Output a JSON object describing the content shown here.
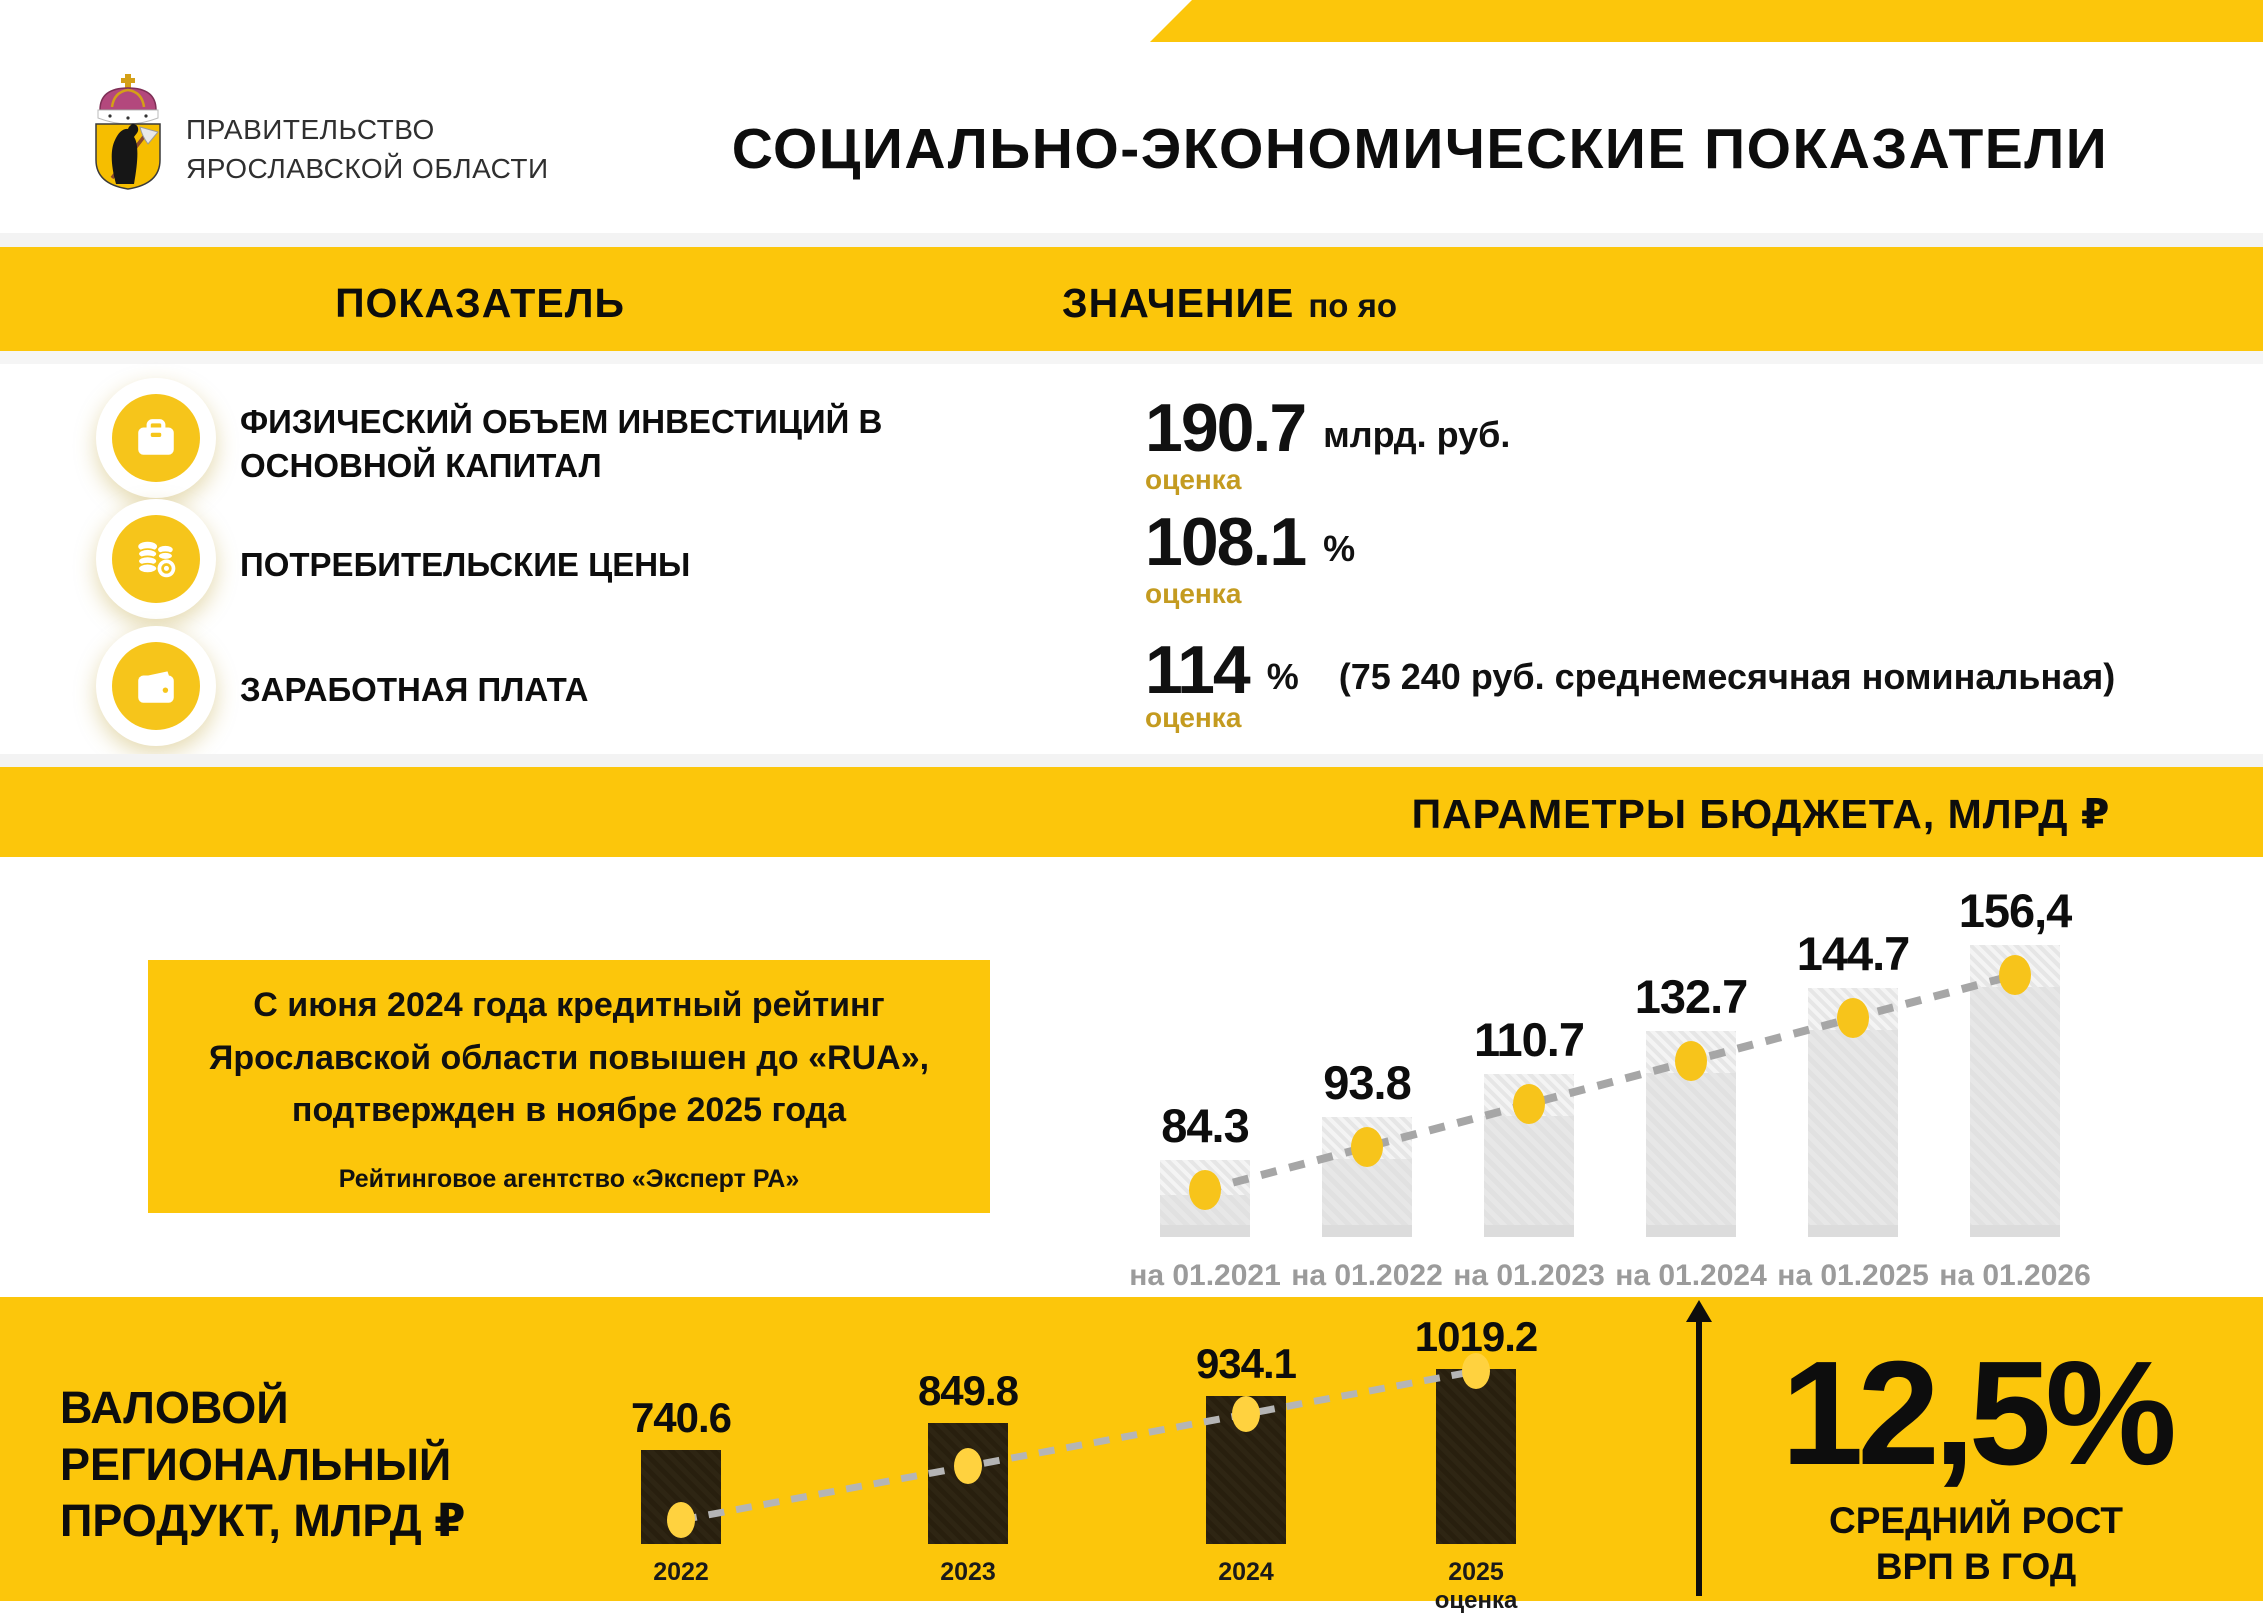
{
  "header": {
    "org_line1": "ПРАВИТЕЛЬСТВО",
    "org_line2": "ЯРОСЛАВСКОЙ ОБЛАСТИ",
    "title": "СОЦИАЛЬНО-ЭКОНОМИЧЕСКИЕ ПОКАЗАТЕЛИ"
  },
  "table_band": {
    "col_indicator": "ПОКАЗАТЕЛЬ",
    "col_value": "ЗНАЧЕНИЕ",
    "col_value_suffix": "по яо"
  },
  "indicators": [
    {
      "icon": "briefcase-icon",
      "label_line1": "ФИЗИЧЕСКИЙ ОБЪЕМ ИНВЕСТИЦИЙ  В",
      "label_line2": "ОСНОВНОЙ КАПИТАЛ",
      "value": "190.7",
      "unit": "млрд. руб.",
      "extra": "",
      "note": "оценка"
    },
    {
      "icon": "coins-icon",
      "label_line1": "ПОТРЕБИТЕЛЬСКИЕ ЦЕНЫ",
      "label_line2": "",
      "value": "108.1",
      "unit": "%",
      "extra": "",
      "note": "оценка"
    },
    {
      "icon": "wallet-icon",
      "label_line1": "ЗАРАБОТНАЯ ПЛАТА",
      "label_line2": "",
      "value": "114",
      "unit": "%",
      "extra": "(75 240 руб. среднемесячная номинальная)",
      "note": "оценка"
    }
  ],
  "budget_band": {
    "title": "ПАРАМЕТРЫ БЮДЖЕТА, МЛРД ₽"
  },
  "rating_box": {
    "lines": [
      "С июня 2024 года кредитный рейтинг",
      "Ярославской области повышен до «RUA»,",
      "подтвержден в ноябре 2025 года"
    ],
    "source": "Рейтинговое агентство «Эксперт РА»"
  },
  "chart_data": [
    {
      "type": "bar",
      "title": "ПАРАМЕТРЫ БЮДЖЕТА, МЛРД ₽",
      "categories": [
        "на 01.2021",
        "на 01.2022",
        "на 01.2023",
        "на 01.2024",
        "на 01.2025",
        "на 01.2026"
      ],
      "values": [
        84.3,
        93.8,
        110.7,
        132.7,
        144.7,
        156.4
      ],
      "value_labels": [
        "84.3",
        "93.8",
        "110.7",
        "132.7",
        "144.7",
        "156,4"
      ],
      "category_notes": [
        "",
        "",
        "",
        "",
        "",
        ""
      ],
      "ylabel": "млрд ₽",
      "legend": "none",
      "grid": false,
      "style": "gray bars with yellow markers and gray dashed trend line"
    },
    {
      "type": "bar",
      "title": "ВАЛОВОЙ РЕГИОНАЛЬНЫЙ ПРОДУКТ, МЛРД ₽",
      "categories": [
        "2022",
        "2023",
        "2024",
        "2025"
      ],
      "values": [
        740.6,
        849.8,
        934.1,
        1019.2
      ],
      "value_labels": [
        "740.6",
        "849.8",
        "934.1",
        "1019.2"
      ],
      "category_notes": [
        "",
        "",
        "",
        "оценка"
      ],
      "ylabel": "млрд ₽",
      "legend": "none",
      "grid": false,
      "style": "dark bars on yellow with yellow markers and gray dashed trend line"
    }
  ],
  "grp_section": {
    "title_line1": "ВАЛОВОЙ",
    "title_line2": "РЕГИОНАЛЬНЫЙ",
    "title_line3": "ПРОДУКТ, МЛРД ₽",
    "growth_value": "12,5%",
    "growth_label_line1": "СРЕДНИЙ РОСТ",
    "growth_label_line2": "ВРП В ГОД"
  },
  "colors": {
    "brand_yellow": "#FCC60B",
    "icon_yellow": "#F6C51B",
    "note_gold": "#C49B20",
    "budget_bar_gray": "#E3E3E3",
    "grp_bar_dark": "#2B2310",
    "axis_label_gray": "#9B9B9B",
    "dash_line_gray": "#A6A6A6"
  }
}
